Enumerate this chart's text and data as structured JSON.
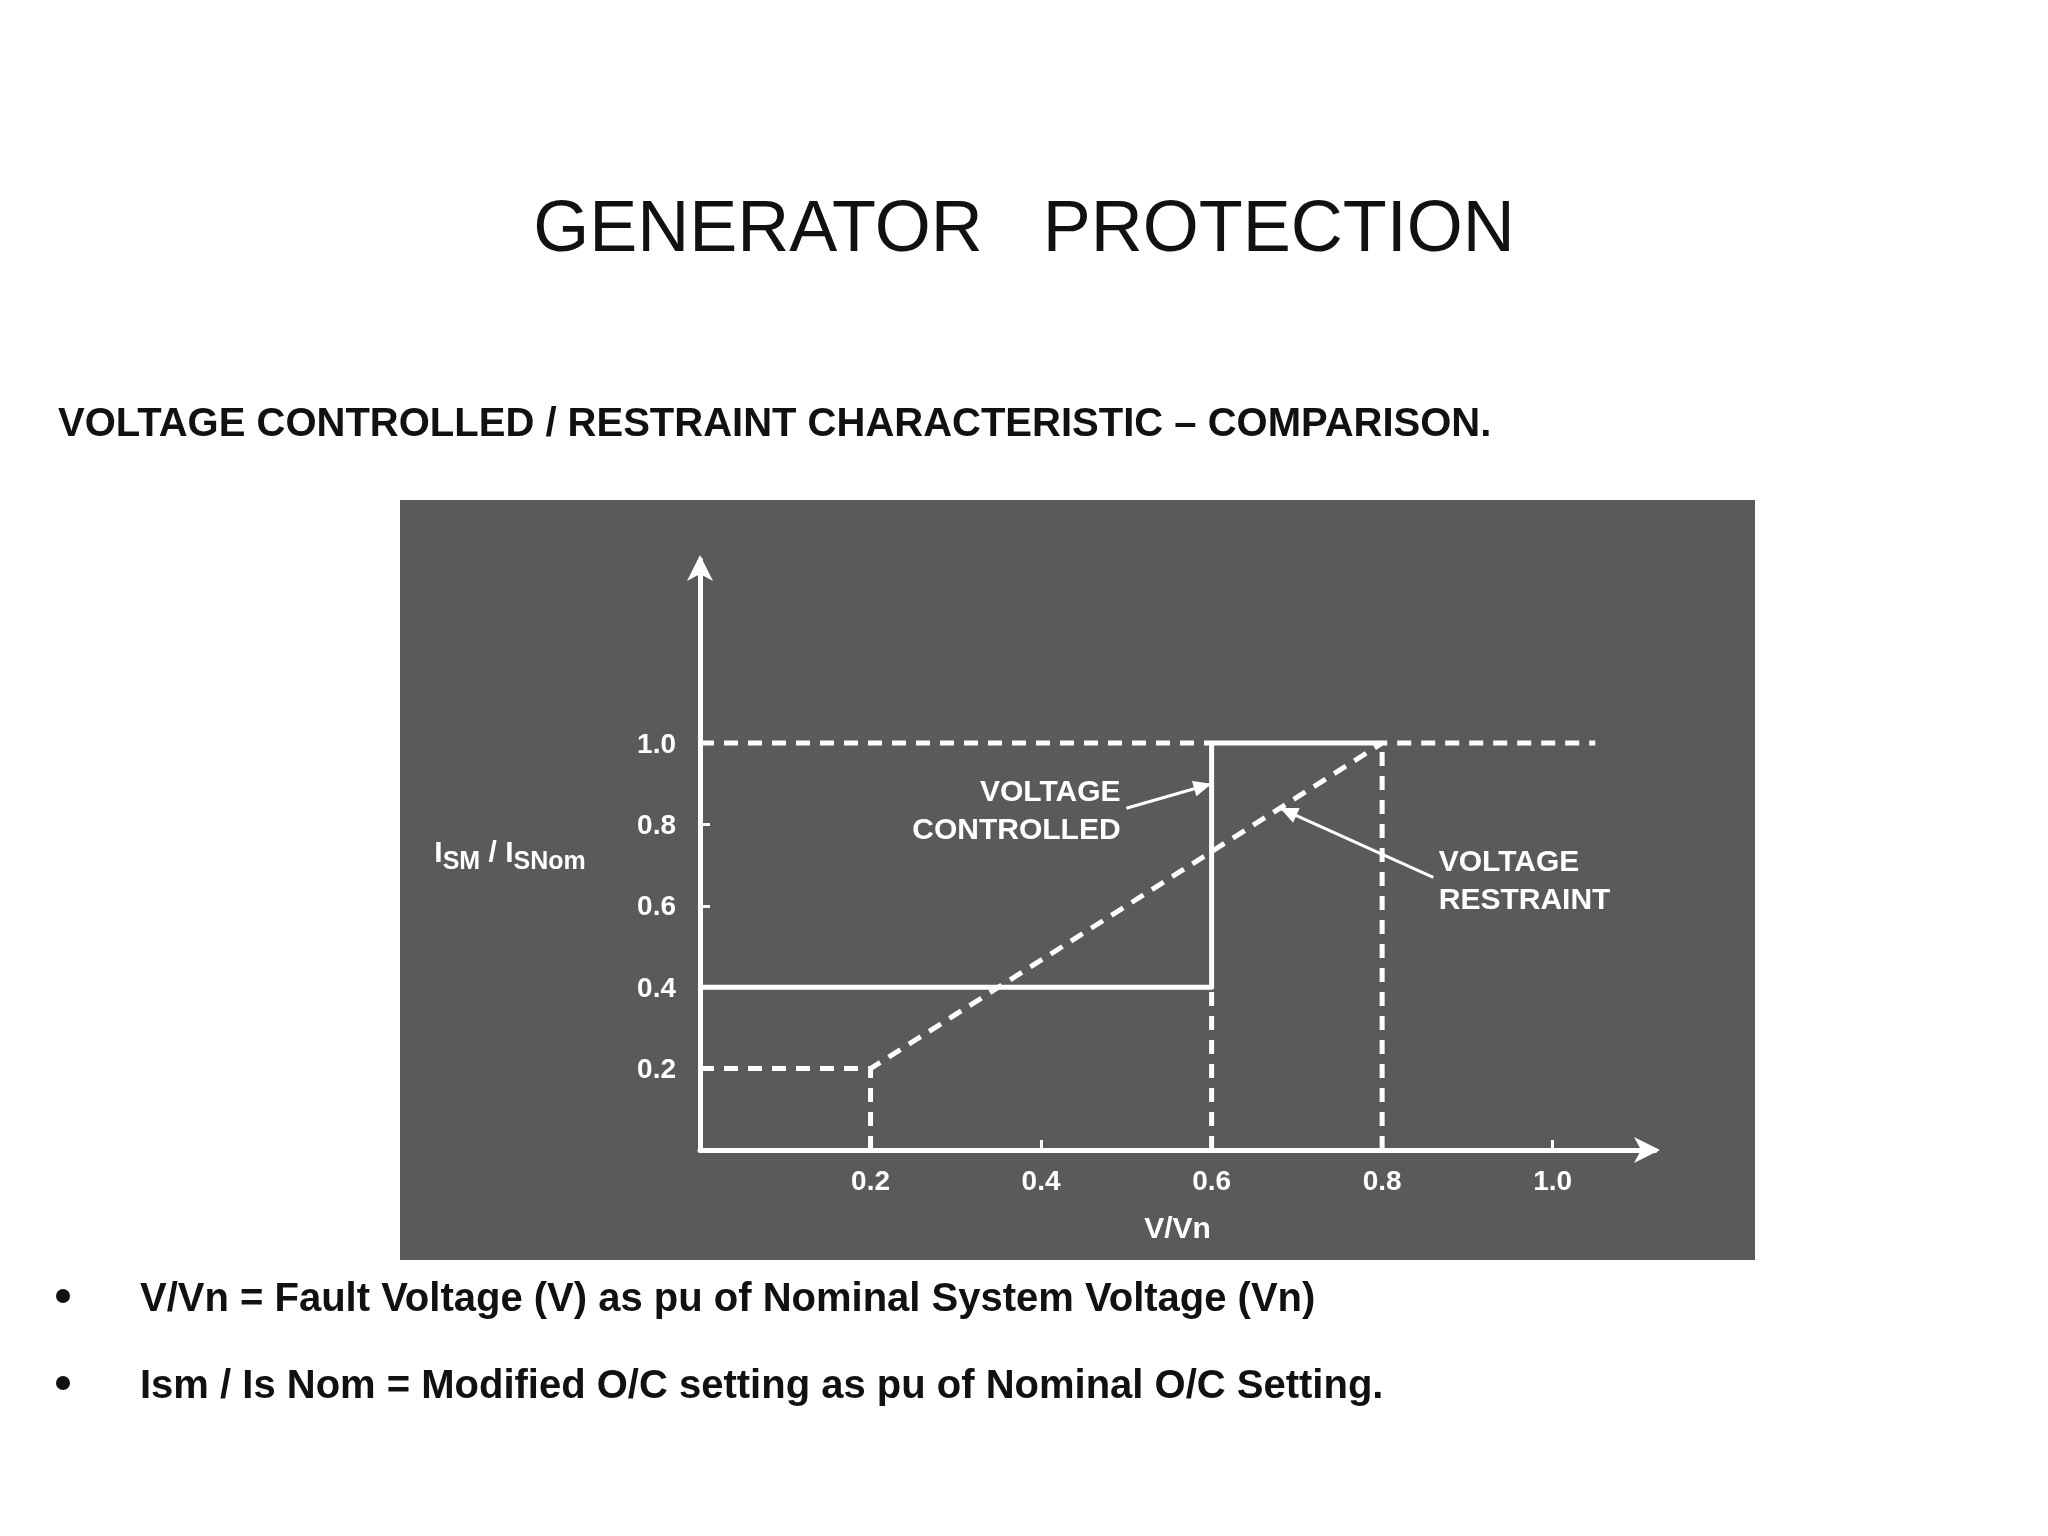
{
  "chart_data": {
    "type": "line",
    "title": "GENERATOR   PROTECTION",
    "subtitle": "VOLTAGE CONTROLLED / RESTRAINT CHARACTERISTIC – COMPARISON.",
    "xlabel": "V/Vn",
    "ylabel": "I$_{SM}$ / I$_{SNom}$",
    "series": [
      {
        "color": "#ffffff",
        "line_style": "solid",
        "x": [
          0,
          0.6,
          0.6,
          0.8
        ],
        "values": [
          0.4,
          0.4,
          1.0,
          1.0
        ]
      },
      {
        "color": "#ffffff",
        "line_style": "dashed",
        "x": [
          0,
          0.2,
          0.8,
          1.05
        ],
        "values": [
          0.2,
          0.2,
          1.0,
          1.0
        ]
      },
      {
        "color": "#ffffff",
        "line_style": "dashed",
        "x": [
          0,
          0.6
        ],
        "values": [
          1.0,
          1.0
        ]
      },
      {
        "color": "#ffffff",
        "line_style": "dashed",
        "x": [
          0.2,
          0.2
        ],
        "values": [
          0,
          0.2
        ]
      },
      {
        "color": "#ffffff",
        "line_style": "dashed",
        "x": [
          0.6,
          0.6
        ],
        "values": [
          0,
          0.4
        ]
      },
      {
        "color": "#ffffff",
        "line_style": "dashed",
        "x": [
          0.8,
          0.8
        ],
        "values": [
          0,
          1.0
        ]
      }
    ],
    "xlim": [
      0,
      1.12
    ],
    "ylim": [
      0,
      1.45
    ],
    "xticks": [
      {
        "value": 0.2,
        "label": "0.2"
      },
      {
        "value": 0.4,
        "label": "0.4"
      },
      {
        "value": 0.6,
        "label": "0.6"
      },
      {
        "value": 0.8,
        "label": "0.8"
      },
      {
        "value": 1,
        "label": "1.0"
      }
    ],
    "yticks": [
      {
        "value": 0.2,
        "label": "0.2"
      },
      {
        "value": 0.4,
        "label": "0.4"
      },
      {
        "value": 0.6,
        "label": "0.6"
      },
      {
        "value": 0.8,
        "label": "0.8"
      },
      {
        "value": 1,
        "label": "1.0"
      }
    ],
    "annotations": [
      {
        "text": "VOLTAGE CONTROLLED",
        "x": 0.6,
        "y": 0.9
      },
      {
        "text": "VOLTAGE RESTRAINT",
        "x": 0.68,
        "y": 0.84
      },
      "V/Vn = Fault Voltage (V) as pu of Nominal System Voltage (Vn)",
      "Ism / Is Nom = Modified O/C setting as pu of Nominal O/C Setting."
    ],
    "grid": false,
    "marker": "none"
  }
}
